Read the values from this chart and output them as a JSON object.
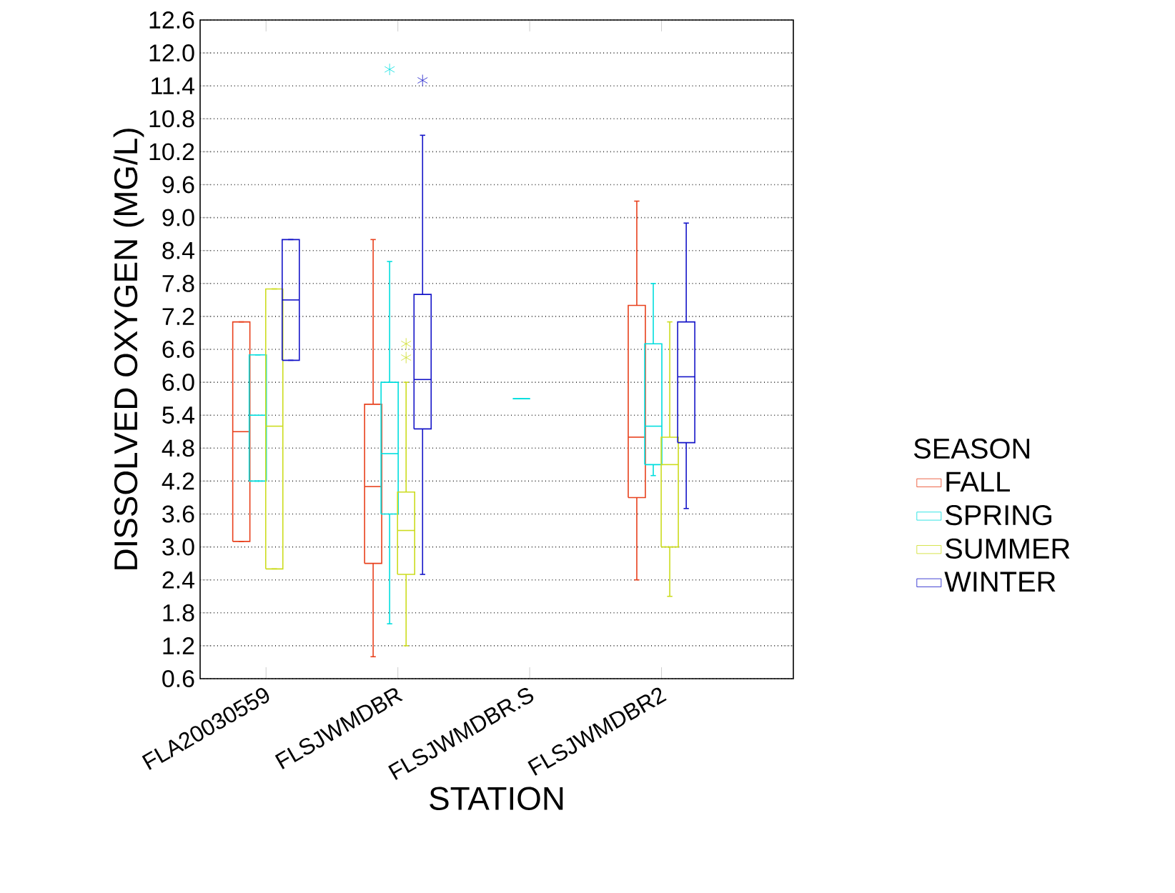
{
  "chart_data": {
    "type": "box",
    "xlabel": "STATION",
    "ylabel": "DISSOLVED OXYGEN (MG/L)",
    "legend_title": "SEASON",
    "legend": "right",
    "grid": "y",
    "categories": [
      "FLA20030559",
      "FLSJWMDBR",
      "FLSJWMDBR.S",
      "FLSJWMDBR2"
    ],
    "ylim": [
      0.6,
      12.6
    ],
    "yticks": [
      0.6,
      1.2,
      1.8,
      2.4,
      {
        "value": 3.0,
        "label": "3.0"
      },
      3.6,
      4.2,
      4.8,
      5.4,
      {
        "value": 6.0,
        "label": "6.0"
      },
      6.6,
      7.2,
      7.8,
      8.4,
      {
        "value": 9.0,
        "label": "9.0"
      },
      9.6,
      10.2,
      10.8,
      11.4,
      {
        "value": 12.0,
        "label": "12.0"
      },
      12.6
    ],
    "series": [
      {
        "name": "FALL",
        "color": "#e8401c",
        "boxes": [
          {
            "low": 3.1,
            "q1": 3.1,
            "median": 5.1,
            "q3": 7.1,
            "high": 7.1
          },
          {
            "low": 1.0,
            "q1": 2.7,
            "median": 4.1,
            "q3": 5.6,
            "high": 8.6
          },
          null,
          {
            "low": 2.4,
            "q1": 3.9,
            "median": 5.0,
            "q3": 7.4,
            "high": 9.3
          }
        ]
      },
      {
        "name": "SPRING",
        "color": "#00dede",
        "boxes": [
          {
            "low": 4.2,
            "q1": 4.2,
            "median": 5.4,
            "q3": 6.5,
            "high": 6.5
          },
          {
            "low": 1.6,
            "q1": 3.6,
            "median": 4.7,
            "q3": 6.0,
            "high": 8.2,
            "outliers": [
              11.7
            ]
          },
          {
            "low": 5.7,
            "q1": 5.7,
            "median": 5.7,
            "q3": 5.7,
            "high": 5.7
          },
          {
            "low": 4.3,
            "q1": 4.5,
            "median": 5.2,
            "q3": 6.7,
            "high": 7.8
          }
        ]
      },
      {
        "name": "SUMMER",
        "color": "#ccdc1e",
        "boxes": [
          {
            "low": 2.6,
            "q1": 2.6,
            "median": 5.2,
            "q3": 7.7,
            "high": 7.7
          },
          {
            "low": 1.2,
            "q1": 2.5,
            "median": 3.3,
            "q3": 4.0,
            "high": 6.0,
            "outliers": [
              6.7,
              6.45
            ]
          },
          null,
          {
            "low": 2.1,
            "q1": 3.0,
            "median": 4.5,
            "q3": 5.0,
            "high": 7.1
          }
        ]
      },
      {
        "name": "WINTER",
        "color": "#1414c8",
        "boxes": [
          {
            "low": 6.4,
            "q1": 6.4,
            "median": 7.5,
            "q3": 8.6,
            "high": 8.6
          },
          {
            "low": 2.5,
            "q1": 5.15,
            "median": 6.05,
            "q3": 7.6,
            "high": 10.5,
            "outliers": [
              11.5
            ]
          },
          null,
          {
            "low": 3.7,
            "q1": 4.9,
            "median": 6.1,
            "q3": 7.1,
            "high": 8.9
          }
        ]
      }
    ]
  }
}
